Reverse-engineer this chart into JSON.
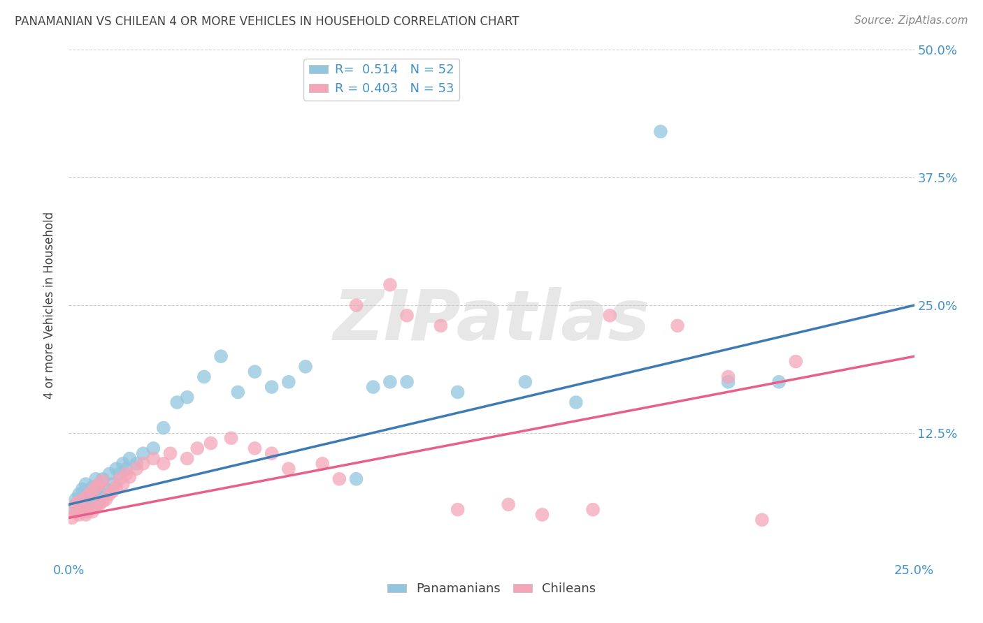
{
  "title": "PANAMANIAN VS CHILEAN 4 OR MORE VEHICLES IN HOUSEHOLD CORRELATION CHART",
  "source": "Source: ZipAtlas.com",
  "xlabel_blue": "Panamanians",
  "xlabel_pink": "Chileans",
  "ylabel": "4 or more Vehicles in Household",
  "xlim": [
    0.0,
    0.25
  ],
  "ylim": [
    0.0,
    0.5
  ],
  "xticks": [
    0.0,
    0.05,
    0.1,
    0.15,
    0.2,
    0.25
  ],
  "xticklabels": [
    "0.0%",
    "",
    "",
    "",
    "",
    "25.0%"
  ],
  "yticks": [
    0.0,
    0.125,
    0.25,
    0.375,
    0.5
  ],
  "yticklabels": [
    "",
    "12.5%",
    "25.0%",
    "37.5%",
    "50.0%"
  ],
  "blue_R": "0.514",
  "blue_N": "52",
  "pink_R": "0.403",
  "pink_N": "53",
  "blue_color": "#92c5de",
  "pink_color": "#f4a6b8",
  "blue_line_color": "#3d7bb5",
  "pink_line_color": "#e8608a",
  "title_color": "#444444",
  "axis_color": "#4292c6",
  "watermark": "ZIPatlas",
  "blue_scatter_x": [
    0.001,
    0.002,
    0.002,
    0.003,
    0.003,
    0.004,
    0.004,
    0.005,
    0.005,
    0.005,
    0.006,
    0.006,
    0.007,
    0.007,
    0.008,
    0.008,
    0.008,
    0.009,
    0.009,
    0.01,
    0.01,
    0.011,
    0.012,
    0.013,
    0.014,
    0.015,
    0.016,
    0.017,
    0.018,
    0.02,
    0.022,
    0.025,
    0.028,
    0.032,
    0.035,
    0.04,
    0.045,
    0.05,
    0.055,
    0.06,
    0.065,
    0.07,
    0.085,
    0.09,
    0.095,
    0.1,
    0.115,
    0.135,
    0.15,
    0.175,
    0.195,
    0.21
  ],
  "blue_scatter_y": [
    0.048,
    0.055,
    0.06,
    0.05,
    0.065,
    0.055,
    0.07,
    0.048,
    0.06,
    0.075,
    0.052,
    0.065,
    0.058,
    0.072,
    0.055,
    0.068,
    0.08,
    0.06,
    0.075,
    0.065,
    0.08,
    0.07,
    0.085,
    0.075,
    0.09,
    0.085,
    0.095,
    0.09,
    0.1,
    0.095,
    0.105,
    0.11,
    0.13,
    0.155,
    0.16,
    0.18,
    0.2,
    0.165,
    0.185,
    0.17,
    0.175,
    0.19,
    0.08,
    0.17,
    0.175,
    0.175,
    0.165,
    0.175,
    0.155,
    0.42,
    0.175,
    0.175
  ],
  "pink_scatter_x": [
    0.001,
    0.002,
    0.002,
    0.003,
    0.003,
    0.004,
    0.005,
    0.005,
    0.006,
    0.006,
    0.007,
    0.007,
    0.008,
    0.008,
    0.009,
    0.009,
    0.01,
    0.01,
    0.011,
    0.012,
    0.013,
    0.014,
    0.015,
    0.016,
    0.017,
    0.018,
    0.02,
    0.022,
    0.025,
    0.028,
    0.03,
    0.035,
    0.038,
    0.042,
    0.048,
    0.055,
    0.06,
    0.065,
    0.075,
    0.08,
    0.085,
    0.095,
    0.1,
    0.11,
    0.115,
    0.13,
    0.14,
    0.155,
    0.16,
    0.18,
    0.195,
    0.205,
    0.215
  ],
  "pink_scatter_y": [
    0.042,
    0.048,
    0.055,
    0.045,
    0.058,
    0.052,
    0.045,
    0.062,
    0.05,
    0.065,
    0.048,
    0.068,
    0.052,
    0.072,
    0.055,
    0.075,
    0.058,
    0.078,
    0.06,
    0.065,
    0.068,
    0.072,
    0.08,
    0.075,
    0.085,
    0.082,
    0.09,
    0.095,
    0.1,
    0.095,
    0.105,
    0.1,
    0.11,
    0.115,
    0.12,
    0.11,
    0.105,
    0.09,
    0.095,
    0.08,
    0.25,
    0.27,
    0.24,
    0.23,
    0.05,
    0.055,
    0.045,
    0.05,
    0.24,
    0.23,
    0.18,
    0.04,
    0.195
  ],
  "blue_line_x": [
    0.0,
    0.25
  ],
  "blue_line_y": [
    0.055,
    0.25
  ],
  "pink_line_x": [
    0.0,
    0.25
  ],
  "pink_line_y": [
    0.042,
    0.2
  ],
  "grid_color": "#cccccc",
  "bg_color": "#ffffff",
  "legend_R_N_color": "#4292c6"
}
